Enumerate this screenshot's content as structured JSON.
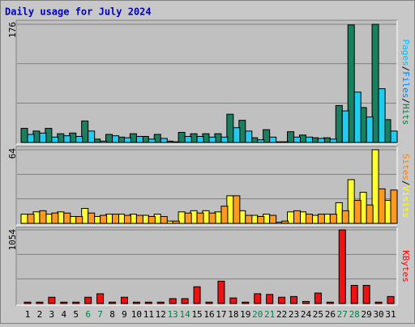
{
  "title": "Daily usage for July 2024",
  "chart_data": [
    {
      "type": "bar",
      "ylim": [
        0,
        176
      ],
      "yticks": [
        176
      ],
      "grid": true,
      "ylabel": [
        {
          "text": "Pages",
          "color": "#00c0ff"
        },
        {
          "text": "/",
          "color": "#000000"
        },
        {
          "text": "Files",
          "color": "#0080ff"
        },
        {
          "text": "/",
          "color": "#000000"
        },
        {
          "text": "Hits",
          "color": "#008040"
        }
      ],
      "series": [
        {
          "name": "Hits",
          "color": "#1a7f5f",
          "values": [
            21,
            17,
            21,
            13,
            14,
            32,
            5,
            12,
            8,
            13,
            9,
            12,
            2,
            15,
            13,
            13,
            13,
            42,
            33,
            7,
            19,
            1,
            16,
            11,
            7,
            7,
            55,
            175,
            52,
            176,
            34
          ]
        },
        {
          "name": "Files",
          "color": "#22ccf0",
          "values": [
            12,
            14,
            8,
            10,
            9,
            17,
            2,
            10,
            7,
            9,
            5,
            6,
            1,
            9,
            9,
            8,
            8,
            22,
            17,
            4,
            8,
            1,
            8,
            8,
            6,
            5,
            47,
            75,
            38,
            80,
            17
          ]
        }
      ]
    },
    {
      "type": "bar",
      "ylim": [
        0,
        64
      ],
      "yticks": [
        64
      ],
      "grid": true,
      "ylabel": [
        {
          "text": "Sites",
          "color": "#ff8000"
        },
        {
          "text": "/",
          "color": "#000000"
        },
        {
          "text": "Visits",
          "color": "#ffff00"
        }
      ],
      "series": [
        {
          "name": "Visits",
          "color": "#ffff33",
          "values": [
            8,
            10,
            8,
            10,
            6,
            13,
            6,
            8,
            8,
            8,
            7,
            8,
            2,
            10,
            11,
            11,
            10,
            24,
            11,
            7,
            8,
            1,
            10,
            10,
            7,
            8,
            18,
            38,
            27,
            64,
            20
          ]
        },
        {
          "name": "Sites",
          "color": "#ff9922",
          "values": [
            8,
            11,
            9,
            9,
            6,
            9,
            7,
            8,
            7,
            7,
            6,
            6,
            2,
            9,
            9,
            9,
            15,
            24,
            7,
            6,
            7,
            2,
            11,
            8,
            8,
            8,
            11,
            20,
            16,
            30,
            29
          ]
        }
      ]
    },
    {
      "type": "bar",
      "ylim": [
        0,
        1054
      ],
      "yticks": [
        1054
      ],
      "grid": true,
      "ylabel": [
        {
          "text": "KBytes",
          "color": "#ff0000"
        }
      ],
      "categories": [
        "1",
        "2",
        "3",
        "4",
        "5",
        "6",
        "7",
        "8",
        "9",
        "10",
        "11",
        "12",
        "13",
        "14",
        "15",
        "16",
        "17",
        "18",
        "19",
        "20",
        "21",
        "22",
        "23",
        "24",
        "25",
        "26",
        "27",
        "28",
        "29",
        "30",
        "31"
      ],
      "category_colors": [
        "#000",
        "#000",
        "#000",
        "#000",
        "#000",
        "#00804a",
        "#00804a",
        "#000",
        "#000",
        "#000",
        "#000",
        "#000",
        "#00804a",
        "#00804a",
        "#000",
        "#000",
        "#000",
        "#000",
        "#000",
        "#00804a",
        "#00804a",
        "#000",
        "#000",
        "#000",
        "#000",
        "#000",
        "#00804a",
        "#00804a",
        "#000",
        "#000",
        "#000"
      ],
      "series": [
        {
          "name": "KBytes",
          "color": "#ee1111",
          "values": [
            20,
            20,
            90,
            20,
            20,
            90,
            140,
            20,
            90,
            20,
            20,
            20,
            70,
            70,
            240,
            20,
            320,
            80,
            20,
            140,
            130,
            90,
            100,
            30,
            150,
            20,
            1054,
            260,
            260,
            20,
            100
          ]
        }
      ]
    }
  ]
}
